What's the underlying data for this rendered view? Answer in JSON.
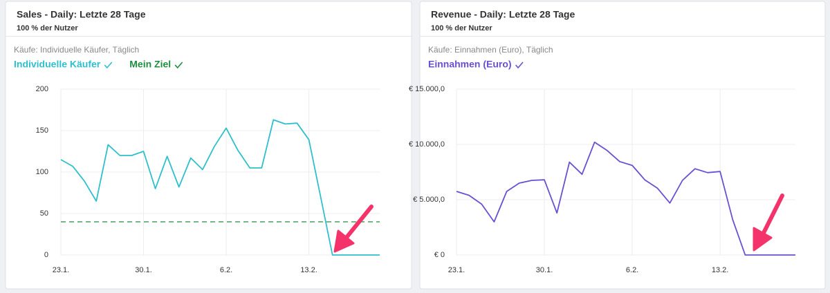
{
  "chart_data": [
    {
      "type": "line",
      "title": "Sales - Daily: Letzte 28 Tage",
      "subtitle": "100 % der Nutzer",
      "description": "Käufe: Individuelle Käufer, Täglich",
      "categories": [
        "23.1.",
        null,
        null,
        null,
        null,
        null,
        null,
        "30.1.",
        null,
        null,
        null,
        null,
        null,
        null,
        "6.2.",
        null,
        null,
        null,
        null,
        null,
        null,
        "13.2.",
        null,
        null,
        null,
        null,
        null,
        null
      ],
      "series": [
        {
          "name": "Individuelle Käufer",
          "color": "#2fbfcc",
          "style": "solid",
          "values": [
            115,
            107,
            89,
            65,
            133,
            120,
            120,
            125,
            80,
            119,
            82,
            117,
            103,
            131,
            153,
            126,
            105,
            105,
            163,
            158,
            159,
            139,
            70,
            0,
            0,
            0,
            0,
            0
          ]
        },
        {
          "name": "Mein Ziel",
          "color": "#1e8f3e",
          "style": "dashed",
          "values": [
            40,
            40,
            40,
            40,
            40,
            40,
            40,
            40,
            40,
            40,
            40,
            40,
            40,
            40,
            40,
            40,
            40,
            40,
            40,
            40,
            40,
            40,
            40,
            40,
            40,
            40,
            40,
            40
          ]
        }
      ],
      "ylim": [
        0,
        200
      ],
      "yticks": [
        0,
        50,
        100,
        150,
        200
      ],
      "grid": true
    },
    {
      "type": "line",
      "title": "Revenue - Daily: Letzte 28 Tage",
      "subtitle": "100 % der Nutzer",
      "description": "Käufe: Einnahmen (Euro), Täglich",
      "categories": [
        "23.1.",
        null,
        null,
        null,
        null,
        null,
        null,
        "30.1.",
        null,
        null,
        null,
        null,
        null,
        null,
        "6.2.",
        null,
        null,
        null,
        null,
        null,
        null,
        "13.2.",
        null,
        null,
        null,
        null,
        null,
        null
      ],
      "series": [
        {
          "name": "Einnahmen (Euro)",
          "color": "#6a4fd2",
          "style": "solid",
          "values": [
            5750,
            5400,
            4600,
            3000,
            5750,
            6500,
            6750,
            6800,
            3800,
            8400,
            7300,
            10200,
            9450,
            8450,
            8100,
            6800,
            6050,
            4700,
            6750,
            7800,
            7450,
            7550,
            3200,
            0,
            0,
            0,
            0,
            0
          ]
        }
      ],
      "ylim": [
        0,
        15000
      ],
      "yticks": [
        {
          "value": 0,
          "label": "€ 0"
        },
        {
          "value": 5000,
          "label": "€ 5.000,0"
        },
        {
          "value": 10000,
          "label": "€ 10.000,0"
        },
        {
          "value": 15000,
          "label": "€ 15.000,0"
        }
      ],
      "grid": true
    }
  ]
}
